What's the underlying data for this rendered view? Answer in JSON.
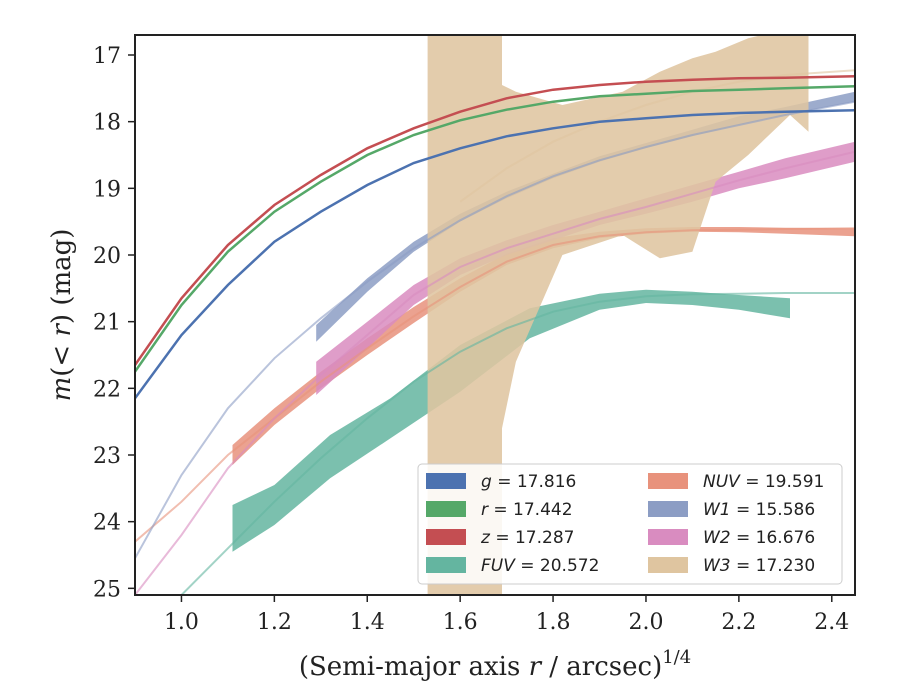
{
  "chart_data": {
    "type": "line",
    "xlabel_main": "(Semi-major axis ",
    "xlabel_var": "r",
    "xlabel_mid": " / arcsec)",
    "xlabel_sup": "1/4",
    "ylabel_main": "m",
    "ylabel_paren": "(< ",
    "ylabel_var": "r",
    "ylabel_end": ") (mag)",
    "xlim": [
      0.9,
      2.45
    ],
    "ylim": [
      25.1,
      16.7
    ],
    "x_ticks": [
      "1.0",
      "1.2",
      "1.4",
      "1.6",
      "1.8",
      "2.0",
      "2.2",
      "2.4"
    ],
    "y_ticks": [
      "17",
      "18",
      "19",
      "20",
      "21",
      "22",
      "23",
      "24",
      "25"
    ],
    "grid": false,
    "legend_position": "lower-right",
    "series": [
      {
        "key": "g",
        "name": "g",
        "label_value": "17.816",
        "color": "#4c72b0",
        "kind": "line",
        "x": [
          0.9,
          1.0,
          1.1,
          1.2,
          1.3,
          1.4,
          1.5,
          1.6,
          1.7,
          1.8,
          1.9,
          2.0,
          2.1,
          2.2,
          2.3,
          2.45
        ],
        "y": [
          22.15,
          21.2,
          20.45,
          19.8,
          19.35,
          18.95,
          18.62,
          18.4,
          18.22,
          18.1,
          18.0,
          17.95,
          17.9,
          17.87,
          17.85,
          17.83
        ]
      },
      {
        "key": "r",
        "name": "r",
        "label_value": "17.442",
        "color": "#55a868",
        "kind": "line",
        "x": [
          0.9,
          1.0,
          1.1,
          1.2,
          1.3,
          1.4,
          1.5,
          1.6,
          1.7,
          1.8,
          1.9,
          2.0,
          2.1,
          2.2,
          2.3,
          2.45
        ],
        "y": [
          21.75,
          20.75,
          19.95,
          19.35,
          18.9,
          18.5,
          18.2,
          17.98,
          17.82,
          17.7,
          17.62,
          17.58,
          17.54,
          17.52,
          17.5,
          17.47
        ]
      },
      {
        "key": "z",
        "name": "z",
        "label_value": "17.287",
        "color": "#c44e52",
        "kind": "line",
        "x": [
          0.9,
          1.0,
          1.1,
          1.2,
          1.3,
          1.4,
          1.5,
          1.6,
          1.7,
          1.8,
          1.9,
          2.0,
          2.1,
          2.2,
          2.3,
          2.45
        ],
        "y": [
          21.65,
          20.65,
          19.85,
          19.25,
          18.8,
          18.4,
          18.1,
          17.85,
          17.65,
          17.52,
          17.45,
          17.4,
          17.37,
          17.35,
          17.34,
          17.32
        ]
      },
      {
        "key": "fuv",
        "name": "FUV",
        "label_value": "20.572",
        "color": "#64b5a0",
        "kind": "band",
        "x": [
          1.11,
          1.2,
          1.32,
          1.45,
          1.6,
          1.75,
          1.9,
          2.0,
          2.1,
          2.2,
          2.31
        ],
        "y_low": [
          24.45,
          24.05,
          23.35,
          22.75,
          22.05,
          21.25,
          20.82,
          20.72,
          20.75,
          20.82,
          20.95
        ],
        "y_high": [
          23.75,
          23.45,
          22.7,
          22.15,
          21.35,
          20.8,
          20.58,
          20.52,
          20.55,
          20.6,
          20.65
        ],
        "ext_x": [
          0.9,
          1.0,
          1.1,
          1.2,
          1.3,
          1.4,
          1.5,
          1.6,
          1.7,
          1.8,
          1.9,
          2.0,
          2.1,
          2.2,
          2.3,
          2.45
        ],
        "ext_y": [
          25.8,
          25.1,
          24.4,
          23.7,
          23.05,
          22.45,
          21.9,
          21.45,
          21.1,
          20.85,
          20.7,
          20.62,
          20.59,
          20.58,
          20.57,
          20.57
        ]
      },
      {
        "key": "nuv",
        "name": "NUV",
        "label_value": "19.591",
        "color": "#e8927c",
        "kind": "band",
        "x": [
          1.11,
          1.2,
          1.3,
          1.4,
          1.5,
          1.6,
          1.7,
          1.8,
          1.9,
          2.0,
          2.1,
          2.2,
          2.3,
          2.45
        ],
        "y_low": [
          23.15,
          22.55,
          22.0,
          21.5,
          21.02,
          20.55,
          20.15,
          19.9,
          19.75,
          19.68,
          19.65,
          19.66,
          19.68,
          19.72
        ],
        "y_high": [
          22.85,
          22.3,
          21.75,
          21.25,
          20.78,
          20.35,
          19.98,
          19.75,
          19.65,
          19.6,
          19.58,
          19.58,
          19.59,
          19.6
        ],
        "ext_x": [
          0.9,
          1.0,
          1.1,
          1.2,
          1.3,
          1.4,
          1.5,
          1.6,
          1.7,
          1.8,
          1.9,
          2.0,
          2.1,
          2.2,
          2.3,
          2.45
        ],
        "ext_y": [
          24.3,
          23.7,
          23.0,
          22.45,
          21.9,
          21.4,
          20.92,
          20.48,
          20.1,
          19.85,
          19.72,
          19.66,
          19.63,
          19.62,
          19.61,
          19.6
        ]
      },
      {
        "key": "w1",
        "name": "W1",
        "label_value": "15.586",
        "color": "#8c9dc4",
        "kind": "band",
        "x": [
          1.29,
          1.4,
          1.5,
          1.6,
          1.7,
          1.8,
          1.9,
          2.0,
          2.1,
          2.2,
          2.3,
          2.45
        ],
        "y_low": [
          21.3,
          20.55,
          19.95,
          19.5,
          19.15,
          18.85,
          18.6,
          18.4,
          18.22,
          18.05,
          17.9,
          17.7
        ],
        "y_high": [
          21.05,
          20.35,
          19.8,
          19.38,
          19.05,
          18.78,
          18.52,
          18.32,
          18.12,
          17.92,
          17.78,
          17.55
        ],
        "ext_x": [
          0.9,
          1.0,
          1.1,
          1.2,
          1.3,
          1.4,
          1.5,
          1.6,
          1.7,
          1.8,
          1.9,
          2.0,
          2.1,
          2.2,
          2.3,
          2.45
        ],
        "ext_y": [
          24.55,
          23.3,
          22.3,
          21.55,
          20.95,
          20.4,
          19.9,
          19.48,
          19.12,
          18.82,
          18.58,
          18.38,
          18.2,
          18.05,
          17.9,
          17.7
        ]
      },
      {
        "key": "w2",
        "name": "W2",
        "label_value": "16.676",
        "color": "#d98cc0",
        "kind": "band",
        "x": [
          1.29,
          1.4,
          1.5,
          1.6,
          1.7,
          1.8,
          1.9,
          2.0,
          2.1,
          2.2,
          2.3,
          2.45
        ],
        "y_low": [
          22.1,
          21.4,
          20.75,
          20.3,
          20.0,
          19.78,
          19.55,
          19.38,
          19.2,
          19.0,
          18.85,
          18.6
        ],
        "y_high": [
          21.6,
          21.0,
          20.45,
          20.05,
          19.78,
          19.55,
          19.35,
          19.15,
          18.95,
          18.75,
          18.55,
          18.3
        ],
        "ext_x": [
          0.9,
          1.0,
          1.1,
          1.2,
          1.3,
          1.4,
          1.5,
          1.6,
          1.7,
          1.8,
          1.9,
          2.0,
          2.1,
          2.2,
          2.3,
          2.45
        ],
        "ext_y": [
          25.1,
          24.2,
          23.2,
          22.45,
          21.8,
          21.2,
          20.6,
          20.18,
          19.9,
          19.68,
          19.46,
          19.28,
          19.08,
          18.88,
          18.7,
          18.45
        ]
      },
      {
        "key": "w3",
        "name": "W3",
        "label_value": "17.230",
        "color": "#dfc5a0",
        "kind": "band",
        "x": [
          1.53,
          1.69,
          1.69,
          1.72,
          1.82,
          1.95,
          2.03,
          2.1,
          2.15,
          2.22,
          2.31,
          2.35
        ],
        "y_low": [
          25.8,
          25.8,
          22.6,
          21.6,
          20.0,
          19.7,
          20.05,
          19.95,
          18.9,
          18.5,
          17.9,
          18.15
        ],
        "y_high": [
          16.2,
          16.2,
          17.45,
          17.55,
          17.75,
          17.55,
          17.25,
          17.05,
          16.95,
          16.75,
          16.6,
          16.6
        ],
        "ext_x": [
          1.6,
          1.7,
          1.8,
          1.9,
          2.0,
          2.1,
          2.2,
          2.3,
          2.45
        ],
        "ext_y": [
          19.2,
          18.7,
          18.3,
          18.0,
          17.75,
          17.55,
          17.4,
          17.3,
          17.23
        ]
      }
    ]
  }
}
